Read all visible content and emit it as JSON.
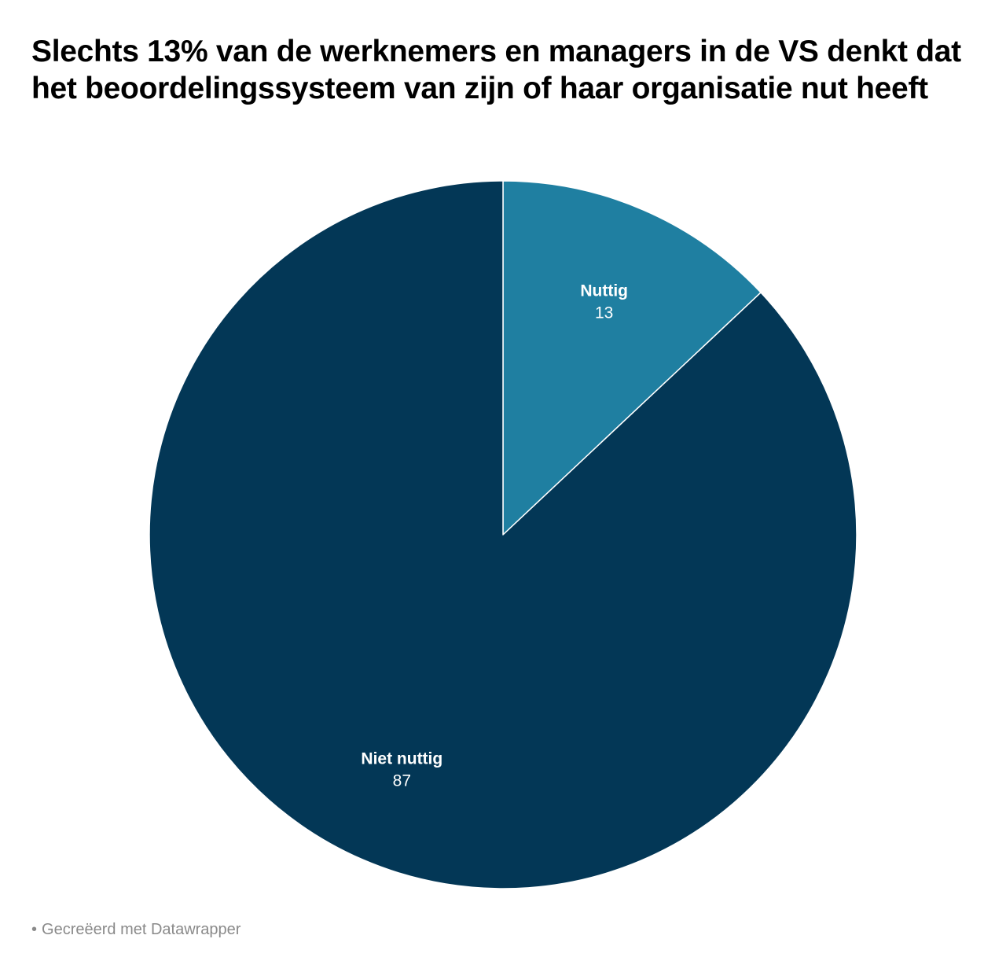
{
  "title": "Slechts 13% van de werknemers en managers in de VS denkt dat het beoordelingssysteem van zijn of haar organisatie nut heeft",
  "footer": {
    "text": "Gecreëerd met Datawrapper"
  },
  "chart_data": {
    "type": "pie",
    "title": "Slechts 13% van de werknemers en managers in de VS denkt dat het beoordelingssysteem van zijn of haar organisatie nut heeft",
    "start_angle": "12 o'clock, clockwise",
    "slices": [
      {
        "label": "Nuttig",
        "value": 13,
        "color": "#1f7fa1"
      },
      {
        "label": "Niet nuttig",
        "value": 87,
        "color": "#033756"
      }
    ],
    "label_color": "#ffffff",
    "separator_color": "#ffffff",
    "legend": "none (labels inside slices)"
  }
}
